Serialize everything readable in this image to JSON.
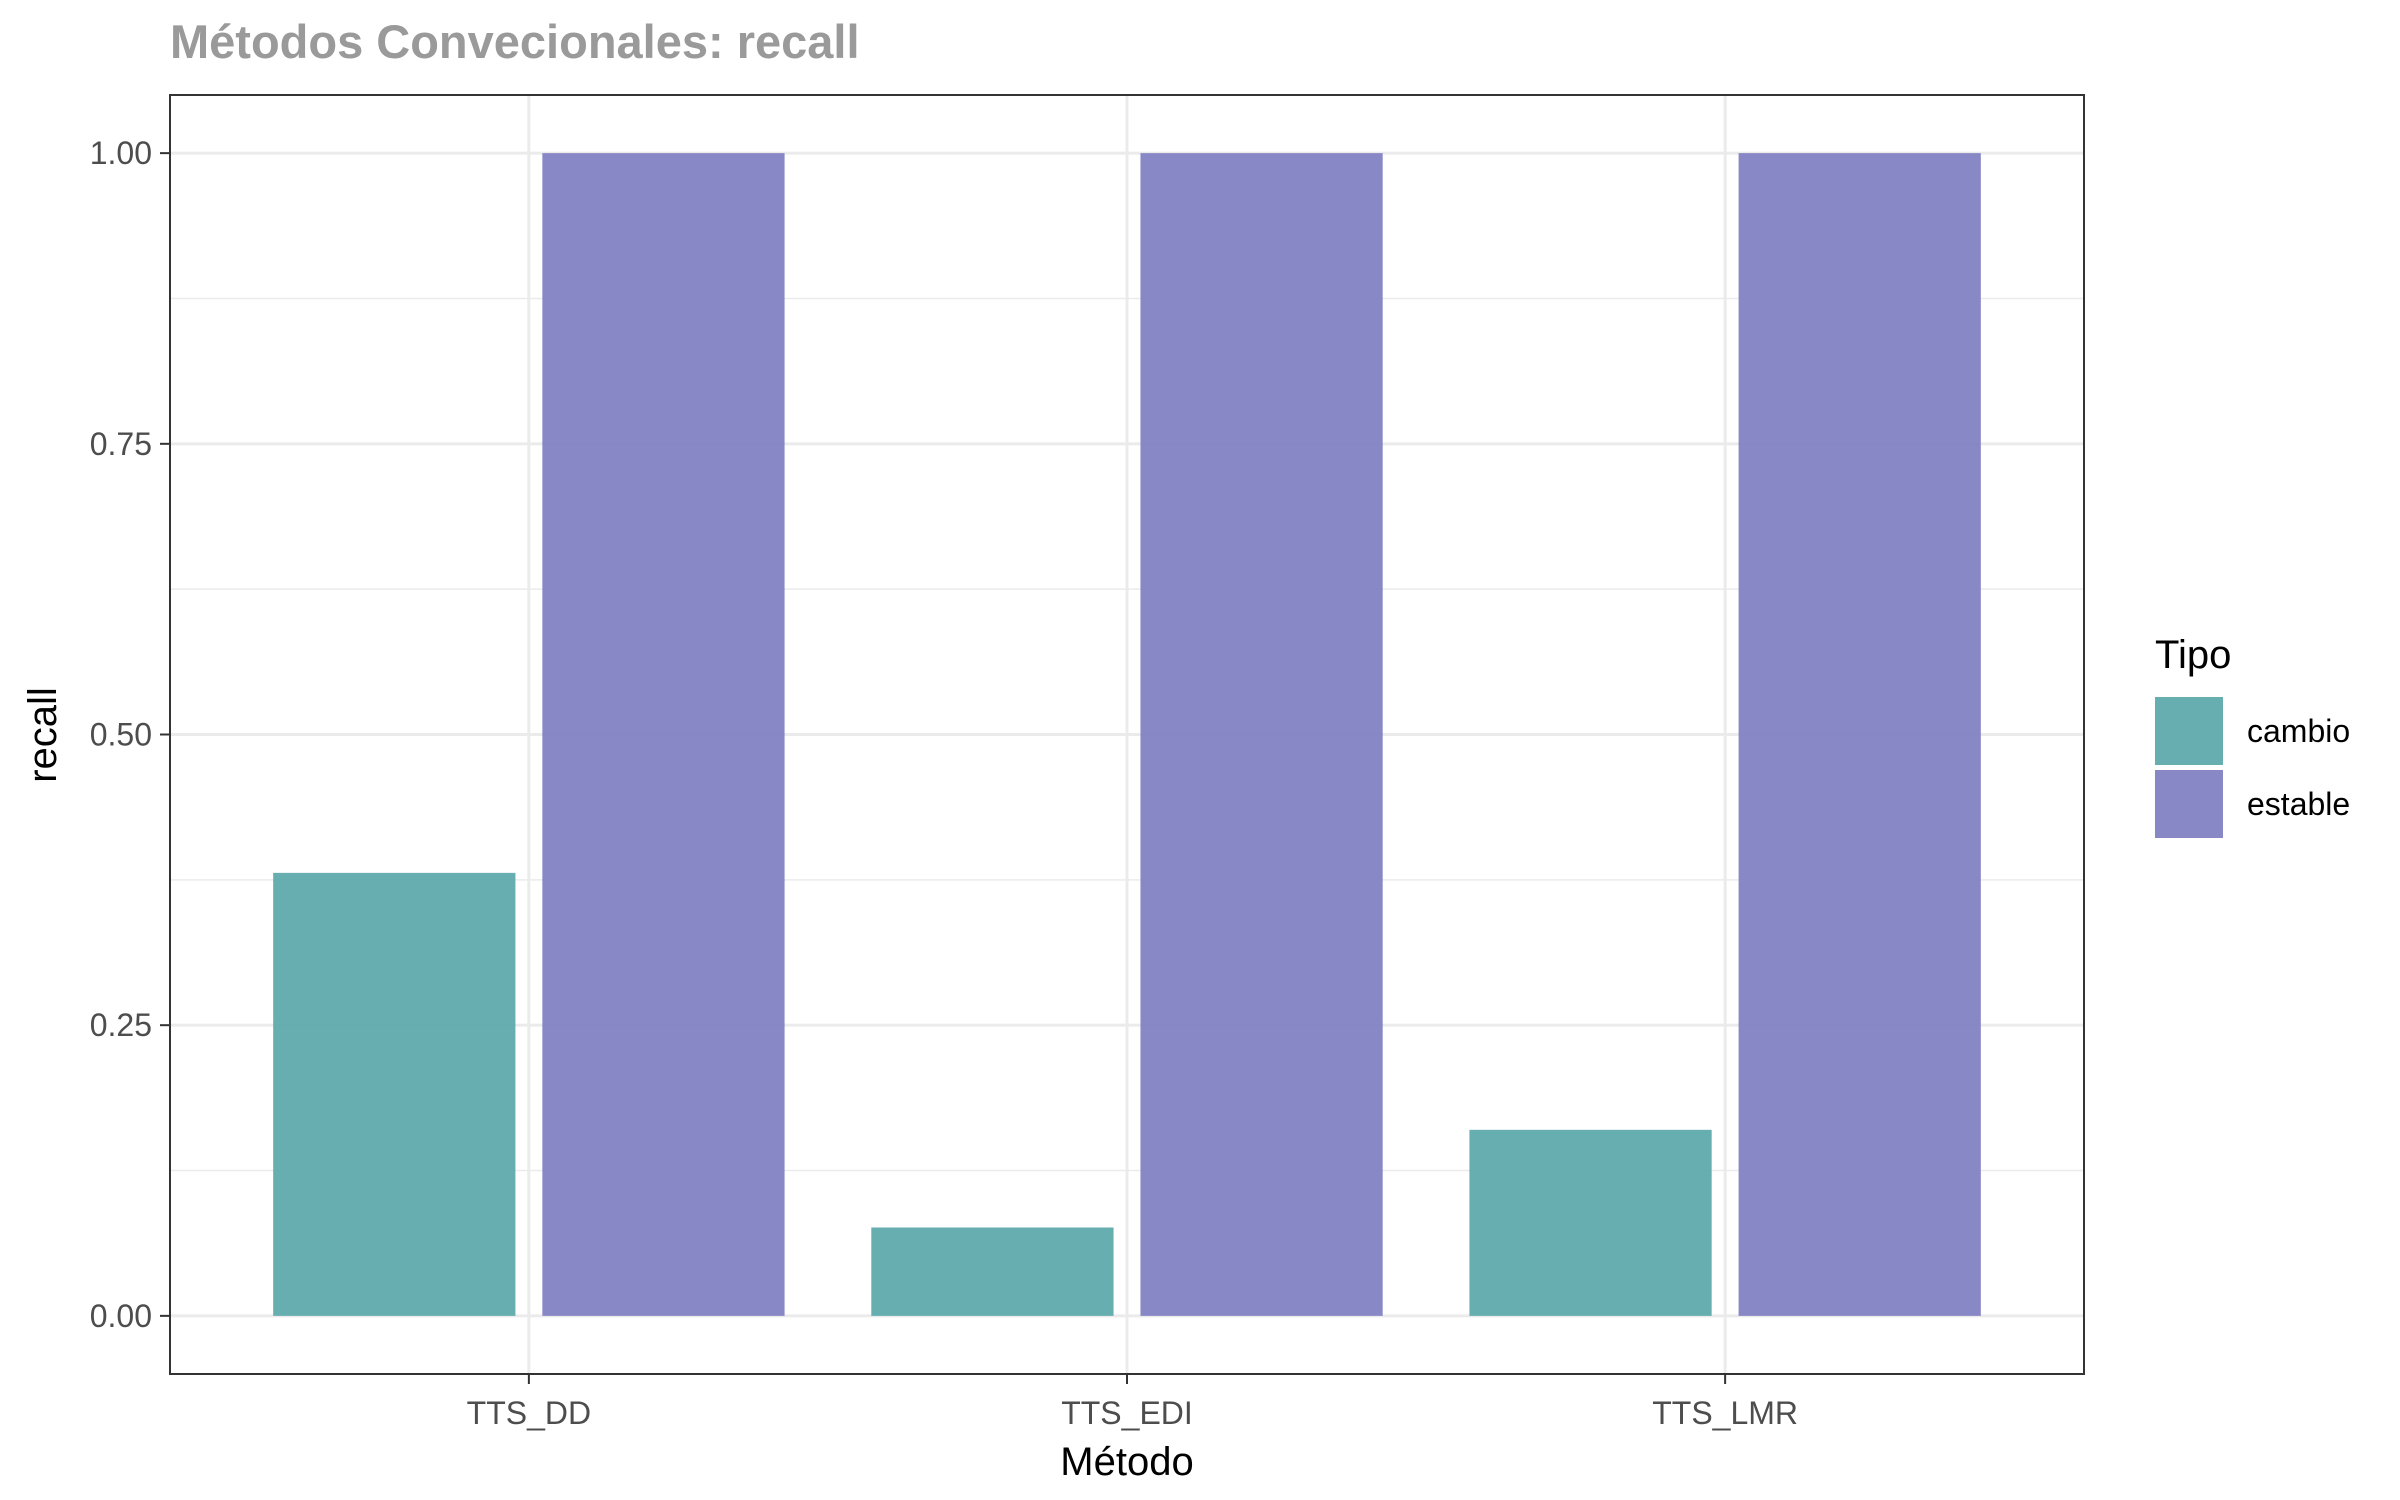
{
  "chart_data": {
    "type": "bar",
    "title": "Métodos Convecionales: recall",
    "xlabel": "Método",
    "ylabel": "recall",
    "categories": [
      "TTS_DD",
      "TTS_EDI",
      "TTS_LMR"
    ],
    "series": [
      {
        "name": "cambio",
        "values": [
          0.381,
          0.076,
          0.16
        ],
        "color": "#5BA8AA"
      },
      {
        "name": "estable",
        "values": [
          1.0,
          1.0,
          1.0
        ],
        "color": "#7F7FC3"
      }
    ],
    "ylim": [
      -0.05,
      1.05
    ],
    "yticks": [
      0.0,
      0.25,
      0.5,
      0.75,
      1.0
    ],
    "ytick_labels": [
      "0.00",
      "0.25",
      "0.50",
      "0.75",
      "1.00"
    ],
    "grid": true,
    "legend": {
      "title": "Tipo",
      "position": "right"
    }
  }
}
